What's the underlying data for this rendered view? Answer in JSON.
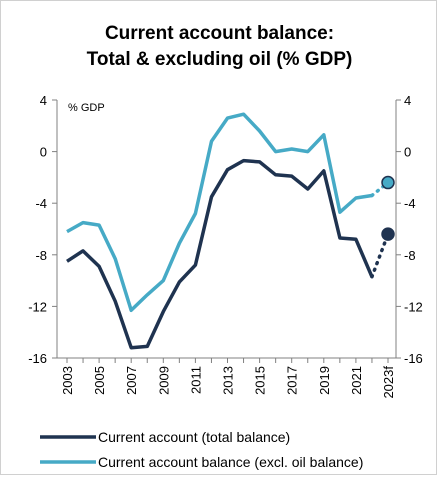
{
  "chart_data": {
    "type": "line",
    "title_lines": [
      "Current account balance:",
      "Total & excluding oil (% GDP)"
    ],
    "unit_label": "% GDP",
    "x": [
      2003,
      2004,
      2005,
      2006,
      2007,
      2008,
      2009,
      2010,
      2011,
      2012,
      2013,
      2014,
      2015,
      2016,
      2017,
      2018,
      2019,
      2020,
      2021,
      2022,
      2023
    ],
    "x_tick_labels": [
      "2003",
      "2005",
      "2007",
      "2009",
      "2011",
      "2013",
      "2015",
      "2017",
      "2019",
      "2021",
      "2023f"
    ],
    "x_tick_values": [
      2003,
      2005,
      2007,
      2009,
      2011,
      2013,
      2015,
      2017,
      2019,
      2021,
      2023
    ],
    "y_ticks": [
      "4",
      "0",
      "-4",
      "-8",
      "-12",
      "-16"
    ],
    "y_tick_values": [
      4,
      0,
      -4,
      -8,
      -12,
      -16
    ],
    "ylim": [
      -16,
      4
    ],
    "xlim": [
      2003,
      2023
    ],
    "grid": false,
    "legend_position": "bottom",
    "series": [
      {
        "name": "Current account (total balance)",
        "color": "#1f3350",
        "values": [
          -8.5,
          -7.7,
          -8.9,
          -11.6,
          -15.2,
          -15.1,
          -12.4,
          -10.1,
          -8.8,
          -3.5,
          -1.4,
          -0.7,
          -0.8,
          -1.8,
          -1.9,
          -2.9,
          -1.5,
          -6.7,
          -6.8,
          -9.7,
          null
        ],
        "forecast": {
          "from": [
            2022,
            -9.7
          ],
          "to": [
            2023,
            -6.4
          ]
        }
      },
      {
        "name": "Current account balance (excl. oil balance)",
        "color": "#46aac6",
        "values": [
          -6.2,
          -5.5,
          -5.7,
          -8.3,
          -12.3,
          -11.1,
          -10.0,
          -7.1,
          -4.8,
          0.8,
          2.6,
          2.9,
          1.6,
          0.0,
          0.2,
          0.0,
          1.3,
          -4.7,
          -3.6,
          -3.4,
          null
        ],
        "forecast": {
          "from": [
            2022,
            -3.4
          ],
          "to": [
            2023,
            -2.4
          ]
        }
      }
    ]
  }
}
